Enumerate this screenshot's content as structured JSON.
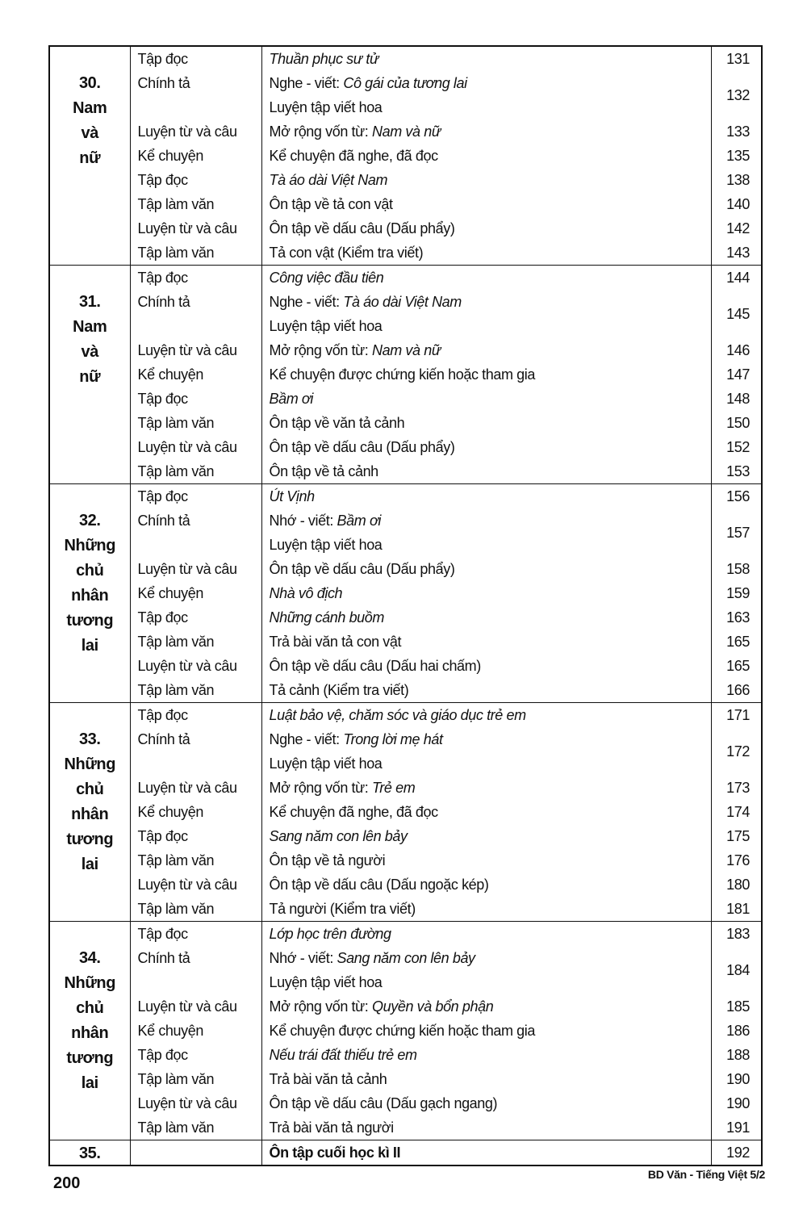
{
  "weeks": [
    {
      "number": "30.",
      "theme_lines": [
        "Nam",
        "và",
        "nữ"
      ],
      "lessons": [
        {
          "subject": "Tập đọc",
          "lines": [
            {
              "italic": "Thuần phục sư tử"
            }
          ],
          "page": "131"
        },
        {
          "subject": "Chính tả",
          "lines": [
            {
              "prefix": "Nghe - viết: ",
              "italic": "Cô gái của tương lai"
            },
            {
              "prefix": "Luyện tập viết hoa"
            }
          ],
          "page": "132"
        },
        {
          "subject": "Luyện từ và câu",
          "lines": [
            {
              "prefix": "Mở rộng vốn từ: ",
              "italic": "Nam và nữ"
            }
          ],
          "page": "133"
        },
        {
          "subject": "Kể chuyện",
          "lines": [
            {
              "prefix": "Kể chuyện đã nghe, đã đọc"
            }
          ],
          "page": "135"
        },
        {
          "subject": "Tập đọc",
          "lines": [
            {
              "italic": "Tà áo dài Việt Nam"
            }
          ],
          "page": "138"
        },
        {
          "subject": "Tập làm văn",
          "lines": [
            {
              "prefix": "Ôn tập về tả con vật"
            }
          ],
          "page": "140"
        },
        {
          "subject": "Luyện từ và câu",
          "lines": [
            {
              "prefix": "Ôn tập về dấu câu (Dấu phẩy)"
            }
          ],
          "page": "142"
        },
        {
          "subject": "Tập làm văn",
          "lines": [
            {
              "prefix": "Tả con vật (Kiểm tra viết)"
            }
          ],
          "page": "143"
        }
      ]
    },
    {
      "number": "31.",
      "theme_lines": [
        "Nam",
        "và",
        "nữ"
      ],
      "lessons": [
        {
          "subject": "Tập đọc",
          "lines": [
            {
              "italic": "Công việc đầu tiên"
            }
          ],
          "page": "144"
        },
        {
          "subject": "Chính tả",
          "lines": [
            {
              "prefix": "Nghe - viết: ",
              "italic": "Tà áo dài Việt Nam"
            },
            {
              "prefix": "Luyện tập viết hoa"
            }
          ],
          "page": "145"
        },
        {
          "subject": "Luyện từ và câu",
          "lines": [
            {
              "prefix": "Mở rộng vốn từ: ",
              "italic": "Nam và nữ"
            }
          ],
          "page": "146"
        },
        {
          "subject": "Kể chuyện",
          "lines": [
            {
              "prefix": "Kể chuyện được chứng kiến hoặc tham gia"
            }
          ],
          "page": "147"
        },
        {
          "subject": "Tập đọc",
          "lines": [
            {
              "italic": "Bầm ơi"
            }
          ],
          "page": "148"
        },
        {
          "subject": "Tập làm văn",
          "lines": [
            {
              "prefix": "Ôn tập về văn tả cảnh"
            }
          ],
          "page": "150"
        },
        {
          "subject": "Luyện từ và câu",
          "lines": [
            {
              "prefix": "Ôn tập về dấu câu (Dấu phẩy)"
            }
          ],
          "page": "152"
        },
        {
          "subject": "Tập làm văn",
          "lines": [
            {
              "prefix": "Ôn tập về tả cảnh"
            }
          ],
          "page": "153"
        }
      ]
    },
    {
      "number": "32.",
      "theme_lines": [
        "Những",
        "chủ",
        "nhân",
        "tương",
        "lai"
      ],
      "lessons": [
        {
          "subject": "Tập đọc",
          "lines": [
            {
              "italic": "Út Vịnh"
            }
          ],
          "page": "156"
        },
        {
          "subject": "Chính tả",
          "lines": [
            {
              "prefix": "Nhớ - viết: ",
              "italic": "Bầm ơi"
            },
            {
              "prefix": "Luyện tập viết hoa"
            }
          ],
          "page": "157"
        },
        {
          "subject": "Luyện từ và câu",
          "lines": [
            {
              "prefix": "Ôn tập về dấu câu (Dấu phẩy)"
            }
          ],
          "page": "158"
        },
        {
          "subject": "Kể chuyện",
          "lines": [
            {
              "italic": "Nhà vô địch"
            }
          ],
          "page": "159"
        },
        {
          "subject": "Tập đọc",
          "lines": [
            {
              "italic": "Những cánh buồm"
            }
          ],
          "page": "163"
        },
        {
          "subject": "Tập làm văn",
          "lines": [
            {
              "prefix": "Trả bài văn tả con vật"
            }
          ],
          "page": "165"
        },
        {
          "subject": "Luyện từ và câu",
          "lines": [
            {
              "prefix": "Ôn tập về dấu câu (Dấu hai chấm)"
            }
          ],
          "page": "165"
        },
        {
          "subject": "Tập làm văn",
          "lines": [
            {
              "prefix": "Tả cảnh (Kiểm tra viết)"
            }
          ],
          "page": "166"
        }
      ]
    },
    {
      "number": "33.",
      "theme_lines": [
        "Những",
        "chủ",
        "nhân",
        "tương",
        "lai"
      ],
      "lessons": [
        {
          "subject": "Tập đọc",
          "lines": [
            {
              "italic": "Luật bảo vệ, chăm sóc và giáo dục trẻ em"
            }
          ],
          "page": "171"
        },
        {
          "subject": "Chính tả",
          "lines": [
            {
              "prefix": "Nghe - viết: ",
              "italic": "Trong lời mẹ hát"
            },
            {
              "prefix": "Luyện tập viết hoa"
            }
          ],
          "page": "172"
        },
        {
          "subject": "Luyện từ và câu",
          "lines": [
            {
              "prefix": "Mở rộng vốn từ: ",
              "italic": "Trẻ em"
            }
          ],
          "page": "173"
        },
        {
          "subject": "Kể chuyện",
          "lines": [
            {
              "prefix": "Kể chuyện đã nghe, đã đọc"
            }
          ],
          "page": "174"
        },
        {
          "subject": "Tập đọc",
          "lines": [
            {
              "italic": "Sang năm con lên bảy"
            }
          ],
          "page": "175"
        },
        {
          "subject": "Tập làm văn",
          "lines": [
            {
              "prefix": "Ôn tập về tả người"
            }
          ],
          "page": "176"
        },
        {
          "subject": "Luyện từ và câu",
          "lines": [
            {
              "prefix": "Ôn tập về dấu câu (Dấu ngoặc kép)"
            }
          ],
          "page": "180"
        },
        {
          "subject": "Tập làm văn",
          "lines": [
            {
              "prefix": "Tả người (Kiểm tra viết)"
            }
          ],
          "page": "181"
        }
      ]
    },
    {
      "number": "34.",
      "theme_lines": [
        "Những",
        "chủ",
        "nhân",
        "tương",
        "lai"
      ],
      "lessons": [
        {
          "subject": "Tập đọc",
          "lines": [
            {
              "italic": "Lớp học trên đường"
            }
          ],
          "page": "183"
        },
        {
          "subject": "Chính tả",
          "lines": [
            {
              "prefix": "Nhớ - viết: ",
              "italic": "Sang năm con lên bảy"
            },
            {
              "prefix": "Luyện tập viết hoa"
            }
          ],
          "page": "184"
        },
        {
          "subject": "Luyện từ và câu",
          "lines": [
            {
              "prefix": "Mở rộng vốn từ: ",
              "italic": "Quyền và bổn phận"
            }
          ],
          "page": "185"
        },
        {
          "subject": "Kể chuyện",
          "lines": [
            {
              "prefix": "Kể chuyện được chứng kiến hoặc tham gia"
            }
          ],
          "page": "186"
        },
        {
          "subject": "Tập đọc",
          "lines": [
            {
              "italic": "Nếu trái đất thiếu trẻ em"
            }
          ],
          "page": "188"
        },
        {
          "subject": "Tập làm văn",
          "lines": [
            {
              "prefix": "Trả bài văn tả cảnh"
            }
          ],
          "page": "190"
        },
        {
          "subject": "Luyện từ và câu",
          "lines": [
            {
              "prefix": "Ôn tập về dấu câu (Dấu gạch ngang)"
            }
          ],
          "page": "190"
        },
        {
          "subject": "Tập làm văn",
          "lines": [
            {
              "prefix": "Trả bài văn tả người"
            }
          ],
          "page": "191"
        }
      ]
    },
    {
      "number": "35.",
      "theme_lines": [],
      "lessons": [
        {
          "subject": "",
          "lines": [
            {
              "bold": "Ôn tập cuối học kì II"
            }
          ],
          "page": "192"
        }
      ]
    }
  ],
  "footer": {
    "page_number": "200",
    "book_title": "BD Văn - Tiếng Việt 5/2"
  }
}
